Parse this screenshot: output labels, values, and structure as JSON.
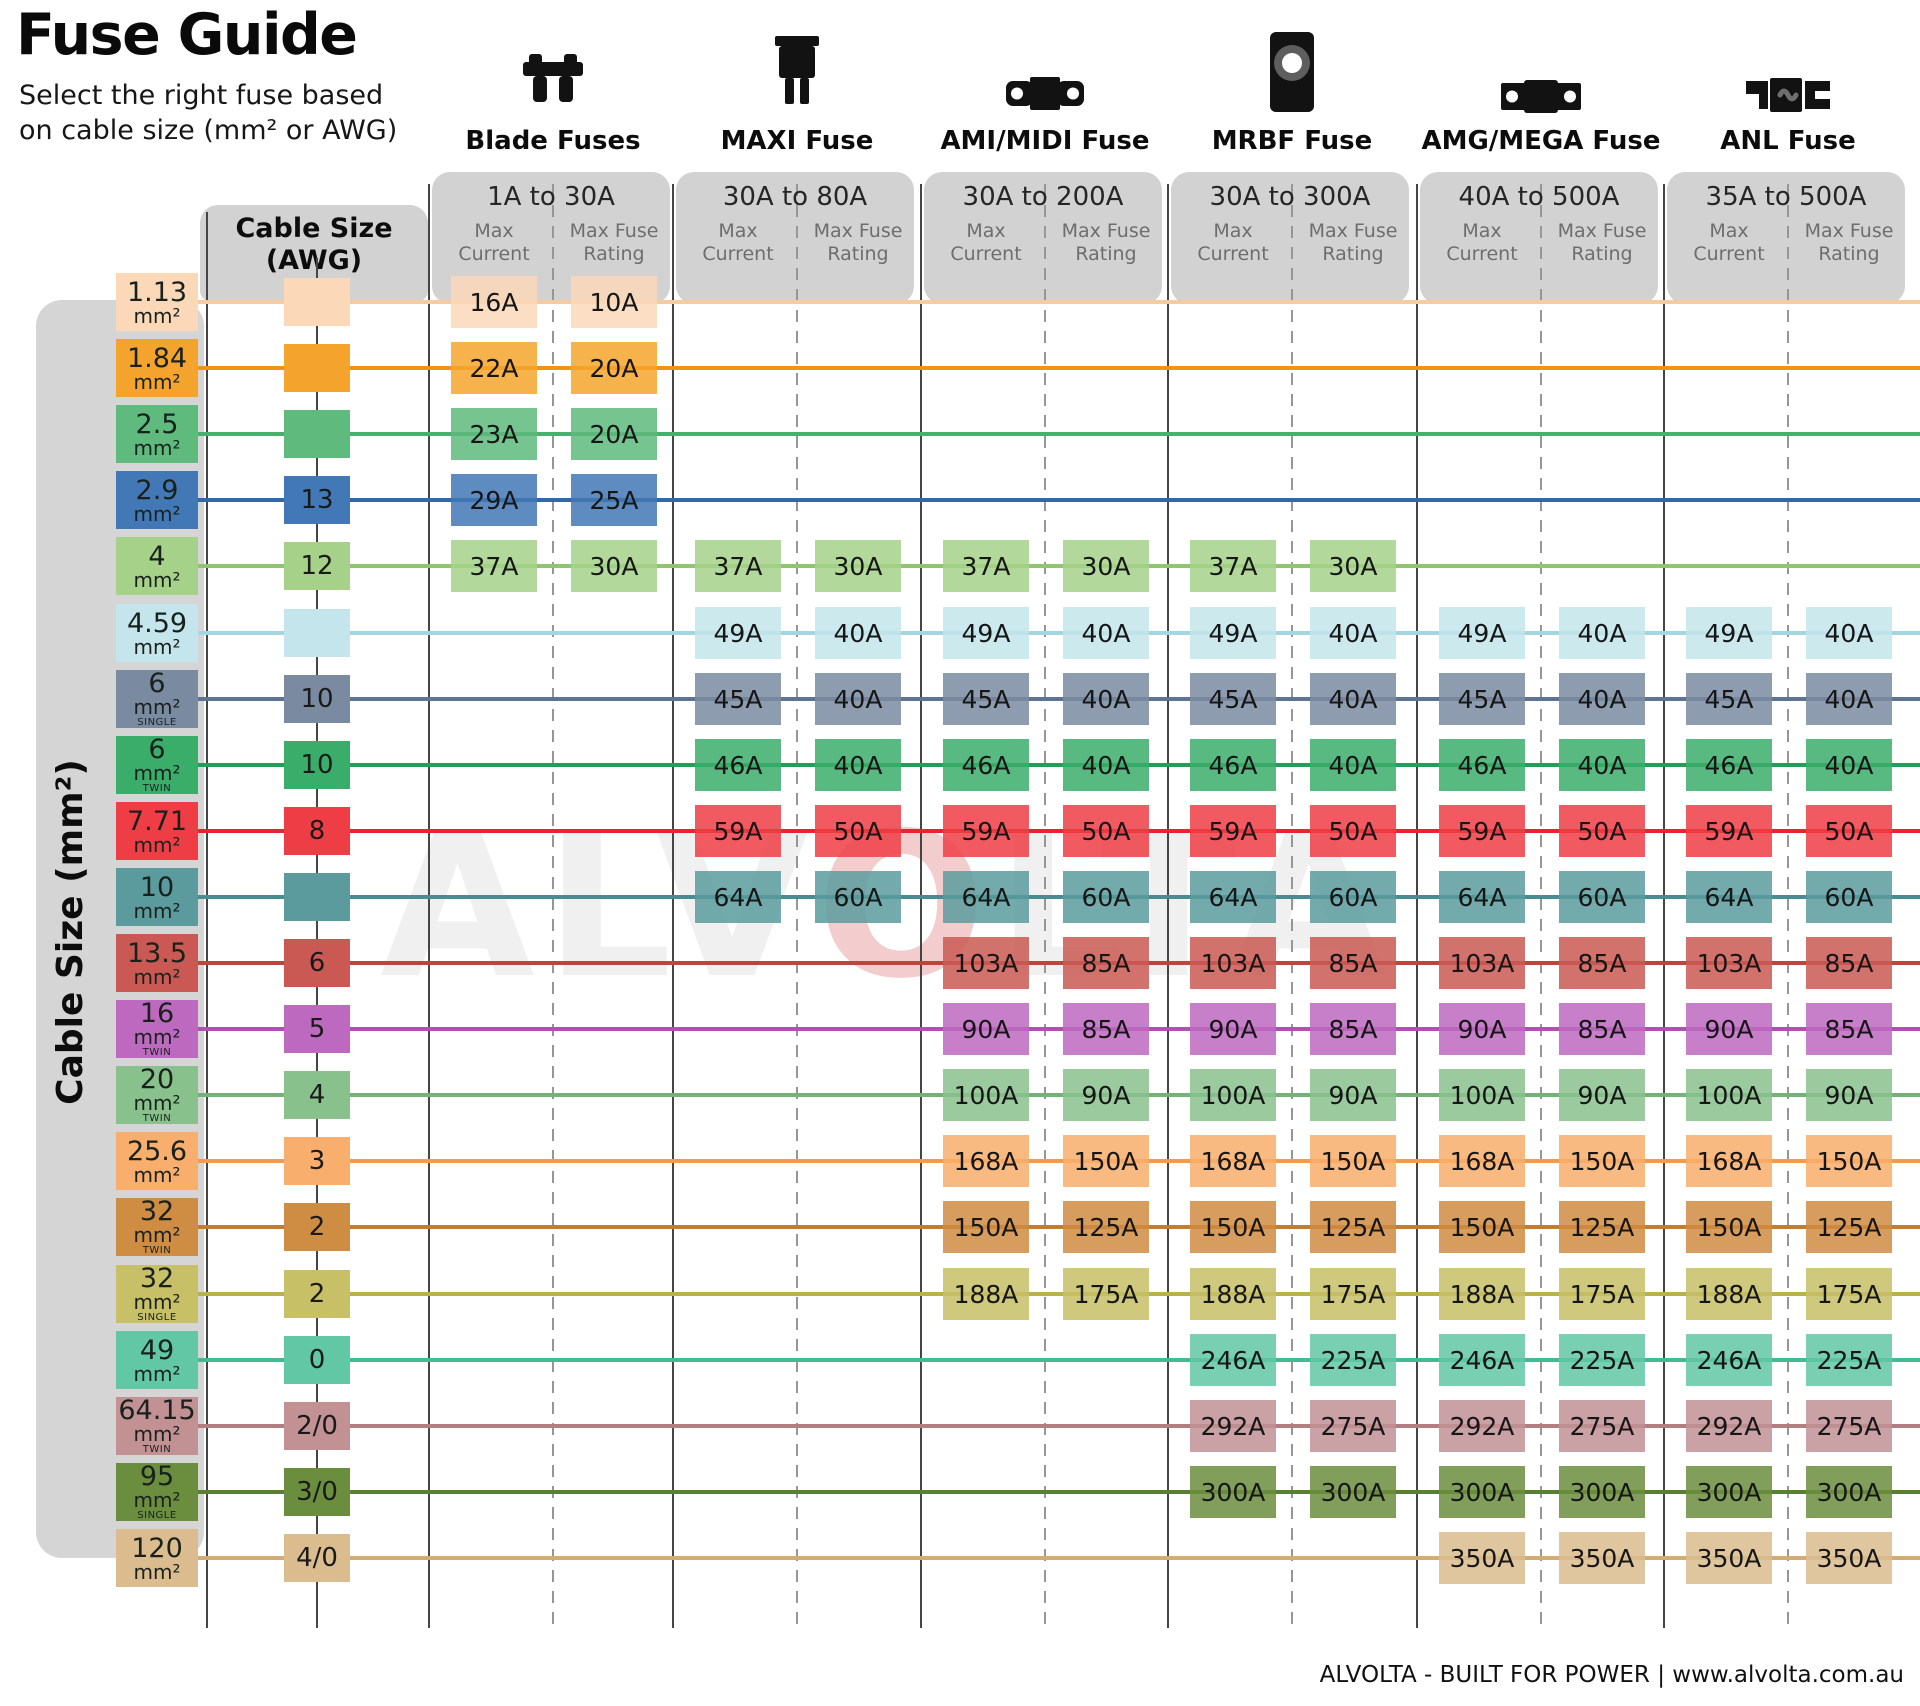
{
  "title": "Fuse Guide",
  "subtitle": {
    "line1": "Select the right fuse based",
    "line2": "on cable size (mm² or AWG)"
  },
  "left_axis_label": "Cable Size (mm²)",
  "awg_header": {
    "line1": "Cable Size",
    "line2": "(AWG)"
  },
  "columns": {
    "max_current": [
      "Max",
      "Current"
    ],
    "max_fuse_rating": [
      "Max Fuse",
      "Rating"
    ]
  },
  "watermark": {
    "left": "ALV",
    "o": "O",
    "right": "LTA"
  },
  "footer": "ALVOLTA - BUILT FOR POWER | www.alvolta.com.au",
  "chart_data": {
    "type": "table",
    "title": "Fuse Guide",
    "row_axis": "Cable Size (mm²)",
    "sub_columns": [
      "Max Current",
      "Max Fuse Rating"
    ],
    "col_groups": [
      {
        "name": "Blade Fuses",
        "range": "1A to 30A",
        "icon": "blade-fuse-icon"
      },
      {
        "name": "MAXI Fuse",
        "range": "30A to 80A",
        "icon": "maxi-fuse-icon"
      },
      {
        "name": "AMI/MIDI Fuse",
        "range": "30A to 200A",
        "icon": "ami-midi-fuse-icon"
      },
      {
        "name": "MRBF Fuse",
        "range": "30A to 300A",
        "icon": "mrbf-fuse-icon"
      },
      {
        "name": "AMG/MEGA Fuse",
        "range": "40A to 500A",
        "icon": "amg-mega-fuse-icon"
      },
      {
        "name": "ANL Fuse",
        "range": "35A to 500A",
        "icon": "anl-fuse-icon"
      }
    ],
    "rows": [
      {
        "size": "1.13",
        "unit": "mm²",
        "variant": "",
        "awg": "",
        "color": "#FAD8B8",
        "line_color": "#F6CBA2",
        "cells": [
          [
            "16A",
            "10A"
          ],
          null,
          null,
          null,
          null,
          null
        ]
      },
      {
        "size": "1.84",
        "unit": "mm²",
        "variant": "",
        "awg": "",
        "color": "#F4A42C",
        "line_color": "#EF9414",
        "cells": [
          [
            "22A",
            "20A"
          ],
          null,
          null,
          null,
          null,
          null
        ]
      },
      {
        "size": "2.5",
        "unit": "mm²",
        "variant": "",
        "awg": "",
        "color": "#5EBA7D",
        "line_color": "#4AAE6C",
        "cells": [
          [
            "23A",
            "20A"
          ],
          null,
          null,
          null,
          null,
          null
        ]
      },
      {
        "size": "2.9",
        "unit": "mm²",
        "variant": "",
        "awg": "13",
        "color": "#4278B5",
        "line_color": "#2F69A9",
        "cells": [
          [
            "29A",
            "25A"
          ],
          null,
          null,
          null,
          null,
          null
        ]
      },
      {
        "size": "4",
        "unit": "mm²",
        "variant": "",
        "awg": "12",
        "color": "#A6D189",
        "line_color": "#8FC56F",
        "cells": [
          [
            "37A",
            "30A"
          ],
          [
            "37A",
            "30A"
          ],
          [
            "37A",
            "30A"
          ],
          [
            "37A",
            "30A"
          ],
          null,
          null
        ]
      },
      {
        "size": "4.59",
        "unit": "mm²",
        "variant": "",
        "awg": "",
        "color": "#C3E5EB",
        "line_color": "#A5D6DF",
        "cells": [
          null,
          [
            "49A",
            "40A"
          ],
          [
            "49A",
            "40A"
          ],
          [
            "49A",
            "40A"
          ],
          [
            "49A",
            "40A"
          ],
          [
            "49A",
            "40A"
          ]
        ]
      },
      {
        "size": "6",
        "unit": "mm²",
        "variant": "SINGLE",
        "awg": "10",
        "color": "#7A8BA1",
        "line_color": "#5F7490",
        "cells": [
          null,
          [
            "45A",
            "40A"
          ],
          [
            "45A",
            "40A"
          ],
          [
            "45A",
            "40A"
          ],
          [
            "45A",
            "40A"
          ],
          [
            "45A",
            "40A"
          ]
        ]
      },
      {
        "size": "6",
        "unit": "mm²",
        "variant": "TWIN",
        "awg": "10",
        "color": "#3BAD6B",
        "line_color": "#279C58",
        "cells": [
          null,
          [
            "46A",
            "40A"
          ],
          [
            "46A",
            "40A"
          ],
          [
            "46A",
            "40A"
          ],
          [
            "46A",
            "40A"
          ],
          [
            "46A",
            "40A"
          ]
        ]
      },
      {
        "size": "7.71",
        "unit": "mm²",
        "variant": "",
        "awg": "8",
        "color": "#EE3D44",
        "line_color": "#E9242E",
        "cells": [
          null,
          [
            "59A",
            "50A"
          ],
          [
            "59A",
            "50A"
          ],
          [
            "59A",
            "50A"
          ],
          [
            "59A",
            "50A"
          ],
          [
            "59A",
            "50A"
          ]
        ]
      },
      {
        "size": "10",
        "unit": "mm²",
        "variant": "",
        "awg": "",
        "color": "#5B9B9E",
        "line_color": "#468D90",
        "cells": [
          null,
          [
            "64A",
            "60A"
          ],
          [
            "64A",
            "60A"
          ],
          [
            "64A",
            "60A"
          ],
          [
            "64A",
            "60A"
          ],
          [
            "64A",
            "60A"
          ]
        ]
      },
      {
        "size": "13.5",
        "unit": "mm²",
        "variant": "",
        "awg": "6",
        "color": "#CA5954",
        "line_color": "#C0443E",
        "cells": [
          null,
          null,
          [
            "103A",
            "85A"
          ],
          [
            "103A",
            "85A"
          ],
          [
            "103A",
            "85A"
          ],
          [
            "103A",
            "85A"
          ]
        ]
      },
      {
        "size": "16",
        "unit": "mm²",
        "variant": "TWIN",
        "awg": "5",
        "color": "#BE69C0",
        "line_color": "#B050B2",
        "cells": [
          null,
          null,
          [
            "90A",
            "85A"
          ],
          [
            "90A",
            "85A"
          ],
          [
            "90A",
            "85A"
          ],
          [
            "90A",
            "85A"
          ]
        ]
      },
      {
        "size": "20",
        "unit": "mm²",
        "variant": "TWIN",
        "awg": "4",
        "color": "#89C18D",
        "line_color": "#72B478",
        "cells": [
          null,
          null,
          [
            "100A",
            "90A"
          ],
          [
            "100A",
            "90A"
          ],
          [
            "100A",
            "90A"
          ],
          [
            "100A",
            "90A"
          ]
        ]
      },
      {
        "size": "25.6",
        "unit": "mm²",
        "variant": "",
        "awg": "3",
        "color": "#F8AE6C",
        "line_color": "#F49A49",
        "cells": [
          null,
          null,
          [
            "168A",
            "150A"
          ],
          [
            "168A",
            "150A"
          ],
          [
            "168A",
            "150A"
          ],
          [
            "168A",
            "150A"
          ]
        ]
      },
      {
        "size": "32",
        "unit": "mm²",
        "variant": "TWIN",
        "awg": "2",
        "color": "#CF8C43",
        "line_color": "#C47D2D",
        "cells": [
          null,
          null,
          [
            "150A",
            "125A"
          ],
          [
            "150A",
            "125A"
          ],
          [
            "150A",
            "125A"
          ],
          [
            "150A",
            "125A"
          ]
        ]
      },
      {
        "size": "32",
        "unit": "mm²",
        "variant": "SINGLE",
        "awg": "2",
        "color": "#C7C067",
        "line_color": "#B9B149",
        "cells": [
          null,
          null,
          [
            "188A",
            "175A"
          ],
          [
            "188A",
            "175A"
          ],
          [
            "188A",
            "175A"
          ],
          [
            "188A",
            "175A"
          ]
        ]
      },
      {
        "size": "49",
        "unit": "mm²",
        "variant": "",
        "awg": "0",
        "color": "#61C7A5",
        "line_color": "#42BB92",
        "cells": [
          null,
          null,
          null,
          [
            "246A",
            "225A"
          ],
          [
            "246A",
            "225A"
          ],
          [
            "246A",
            "225A"
          ]
        ]
      },
      {
        "size": "64.15",
        "unit": "mm²",
        "variant": "TWIN",
        "awg": "2/0",
        "color": "#C19194",
        "line_color": "#B37D81",
        "cells": [
          null,
          null,
          null,
          [
            "292A",
            "275A"
          ],
          [
            "292A",
            "275A"
          ],
          [
            "292A",
            "275A"
          ]
        ]
      },
      {
        "size": "95",
        "unit": "mm²",
        "variant": "SINGLE",
        "awg": "3/0",
        "color": "#6B8E3E",
        "line_color": "#598030",
        "cells": [
          null,
          null,
          null,
          [
            "300A",
            "300A"
          ],
          [
            "300A",
            "300A"
          ],
          [
            "300A",
            "300A"
          ]
        ]
      },
      {
        "size": "120",
        "unit": "mm²",
        "variant": "",
        "awg": "4/0",
        "color": "#DBBC8E",
        "line_color": "#D1AC73",
        "cells": [
          null,
          null,
          null,
          null,
          [
            "350A",
            "350A"
          ],
          [
            "350A",
            "350A"
          ]
        ]
      }
    ]
  }
}
